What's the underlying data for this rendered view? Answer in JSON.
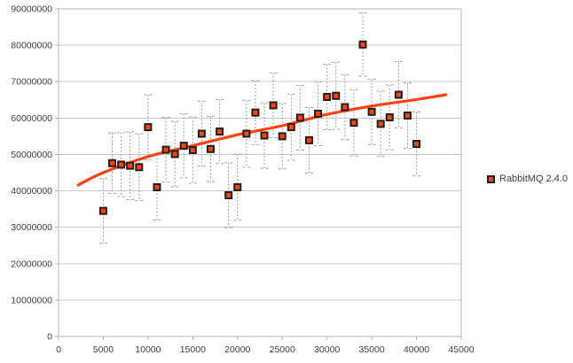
{
  "chart_data": {
    "type": "scatter",
    "title": "",
    "grid": true,
    "x_axis": {
      "min": 0,
      "max": 45000,
      "ticks": [
        "0",
        "5000",
        "10000",
        "15000",
        "20000",
        "25000",
        "30000",
        "35000",
        "40000",
        "45000"
      ]
    },
    "y_axis": {
      "min": 0,
      "max": 90000000,
      "ticks": [
        "0",
        "10000000",
        "20000000",
        "30000000",
        "40000000",
        "50000000",
        "60000000",
        "70000000",
        "80000000",
        "90000000"
      ]
    },
    "legend": {
      "position": "right",
      "label": "RabbitMQ 2.4.0"
    },
    "series": [
      {
        "name": "RabbitMQ 2.4.0",
        "marker": "square",
        "marker_color": "#ff420e",
        "marker_border": "#1f1f1f",
        "error_bars": true,
        "points": [
          {
            "x": 5000,
            "y": 34500000,
            "err": 8900000
          },
          {
            "x": 6000,
            "y": 47600000,
            "err": 8300000
          },
          {
            "x": 7000,
            "y": 47200000,
            "err": 8800000
          },
          {
            "x": 8000,
            "y": 46900000,
            "err": 9300000
          },
          {
            "x": 9000,
            "y": 46500000,
            "err": 9200000
          },
          {
            "x": 10000,
            "y": 57500000,
            "err": 8900000
          },
          {
            "x": 11000,
            "y": 41000000,
            "err": 9000000
          },
          {
            "x": 12000,
            "y": 51300000,
            "err": 8900000
          },
          {
            "x": 13000,
            "y": 50100000,
            "err": 9000000
          },
          {
            "x": 14000,
            "y": 52400000,
            "err": 8800000
          },
          {
            "x": 15000,
            "y": 51200000,
            "err": 9100000
          },
          {
            "x": 16000,
            "y": 55700000,
            "err": 8900000
          },
          {
            "x": 17000,
            "y": 51500000,
            "err": 9000000
          },
          {
            "x": 18000,
            "y": 56300000,
            "err": 8800000
          },
          {
            "x": 19000,
            "y": 38800000,
            "err": 8900000
          },
          {
            "x": 20000,
            "y": 41000000,
            "err": 9100000
          },
          {
            "x": 21000,
            "y": 55700000,
            "err": 9200000
          },
          {
            "x": 22000,
            "y": 61500000,
            "err": 8800000
          },
          {
            "x": 23000,
            "y": 55200000,
            "err": 9000000
          },
          {
            "x": 24000,
            "y": 63500000,
            "err": 8900000
          },
          {
            "x": 25000,
            "y": 55000000,
            "err": 9000000
          },
          {
            "x": 26000,
            "y": 57500000,
            "err": 9100000
          },
          {
            "x": 27000,
            "y": 60100000,
            "err": 8900000
          },
          {
            "x": 28000,
            "y": 53900000,
            "err": 9000000
          },
          {
            "x": 29000,
            "y": 61200000,
            "err": 8800000
          },
          {
            "x": 30000,
            "y": 65800000,
            "err": 9000000
          },
          {
            "x": 31000,
            "y": 66100000,
            "err": 9200000
          },
          {
            "x": 32000,
            "y": 63000000,
            "err": 8900000
          },
          {
            "x": 33000,
            "y": 58700000,
            "err": 9100000
          },
          {
            "x": 34000,
            "y": 80200000,
            "err": 8700000
          },
          {
            "x": 35000,
            "y": 61700000,
            "err": 9000000
          },
          {
            "x": 36000,
            "y": 58400000,
            "err": 9000000
          },
          {
            "x": 37000,
            "y": 60200000,
            "err": 8900000
          },
          {
            "x": 38000,
            "y": 66400000,
            "err": 9100000
          },
          {
            "x": 39000,
            "y": 60700000,
            "err": 9000000
          },
          {
            "x": 40000,
            "y": 52900000,
            "err": 8800000
          }
        ]
      }
    ],
    "trend_line": {
      "name": "logarithmic-fit",
      "color": "#ff420e",
      "x": [
        2200,
        5000,
        10000,
        15000,
        20000,
        25000,
        30000,
        35000,
        40000,
        43300
      ],
      "y": [
        41600000,
        45000000,
        49400000,
        52400000,
        55400000,
        57900000,
        61000000,
        63300000,
        65100000,
        66400000
      ]
    },
    "colors": {
      "background": "#ffffff",
      "grid": "#c9c9c9",
      "border": "#b5b5b5",
      "error_bar": "#9f9f9f",
      "text": "#3e3e3e"
    }
  }
}
